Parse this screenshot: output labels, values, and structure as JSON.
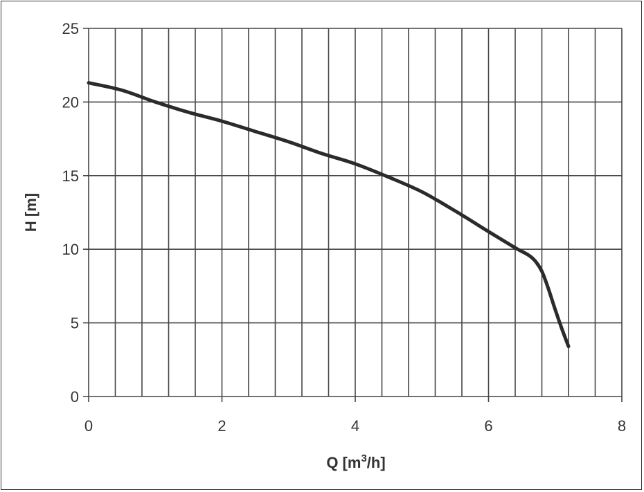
{
  "chart_data": {
    "type": "line",
    "title": "",
    "xlabel_main": "Q [m",
    "xlabel_sup": "3",
    "xlabel_tail": "/h]",
    "ylabel": "H [m]",
    "xlim": [
      0,
      8
    ],
    "ylim": [
      0,
      25
    ],
    "x_ticks": [
      0,
      2,
      4,
      6,
      8
    ],
    "y_ticks": [
      0,
      5,
      10,
      15,
      20,
      25
    ],
    "x_grid_step": 0.4,
    "y_grid_step": 5,
    "grid": true,
    "series": [
      {
        "x": [
          0,
          0.5,
          1.0,
          1.5,
          2.0,
          2.5,
          3.0,
          3.5,
          4.0,
          4.5,
          5.0,
          5.5,
          6.0,
          6.4,
          6.6,
          6.7,
          6.8,
          6.9,
          7.0,
          7.1,
          7.2
        ],
        "y": [
          21.3,
          20.8,
          20.0,
          19.3,
          18.7,
          18.0,
          17.3,
          16.5,
          15.8,
          14.9,
          13.9,
          12.6,
          11.2,
          10.1,
          9.6,
          9.2,
          8.5,
          7.3,
          5.9,
          4.6,
          3.4
        ]
      }
    ]
  }
}
